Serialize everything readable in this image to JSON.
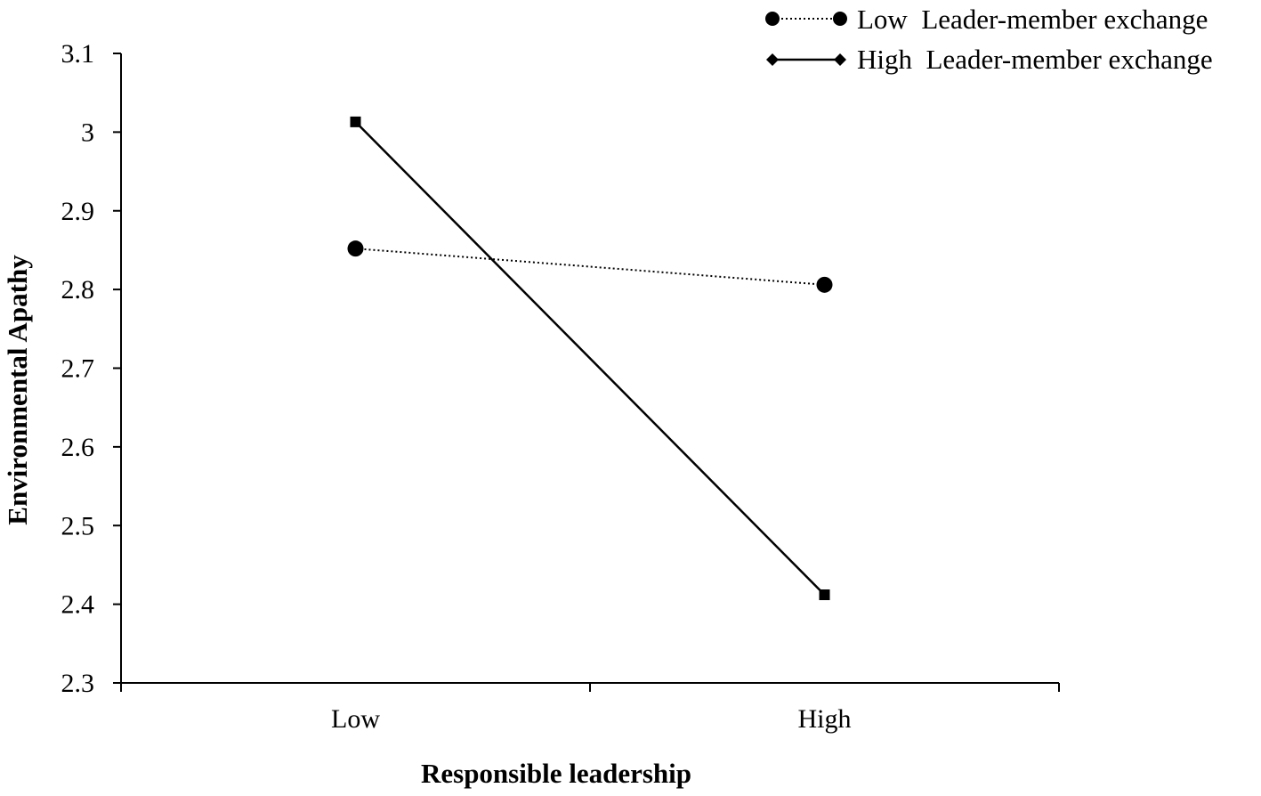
{
  "chart_data": {
    "type": "line",
    "xlabel": "Responsible leadership",
    "ylabel": "Environmental Apathy",
    "categories": [
      "Low",
      "High"
    ],
    "ylim": [
      2.3,
      3.1
    ],
    "yticks": [
      "2.3",
      "2.4",
      "2.5",
      "2.6",
      "2.7",
      "2.8",
      "2.9",
      "3",
      "3.1"
    ],
    "grid": false,
    "legend_position": "top-right",
    "series": [
      {
        "name": "Low  Leader-member exchange",
        "values": [
          2.852,
          2.806
        ],
        "line_style": "dotted",
        "marker": "circle",
        "color": "#000000"
      },
      {
        "name": "High  Leader-member exchange",
        "values": [
          3.013,
          2.412
        ],
        "line_style": "solid",
        "marker": "square",
        "legend_marker": "diamond",
        "color": "#000000"
      }
    ]
  }
}
